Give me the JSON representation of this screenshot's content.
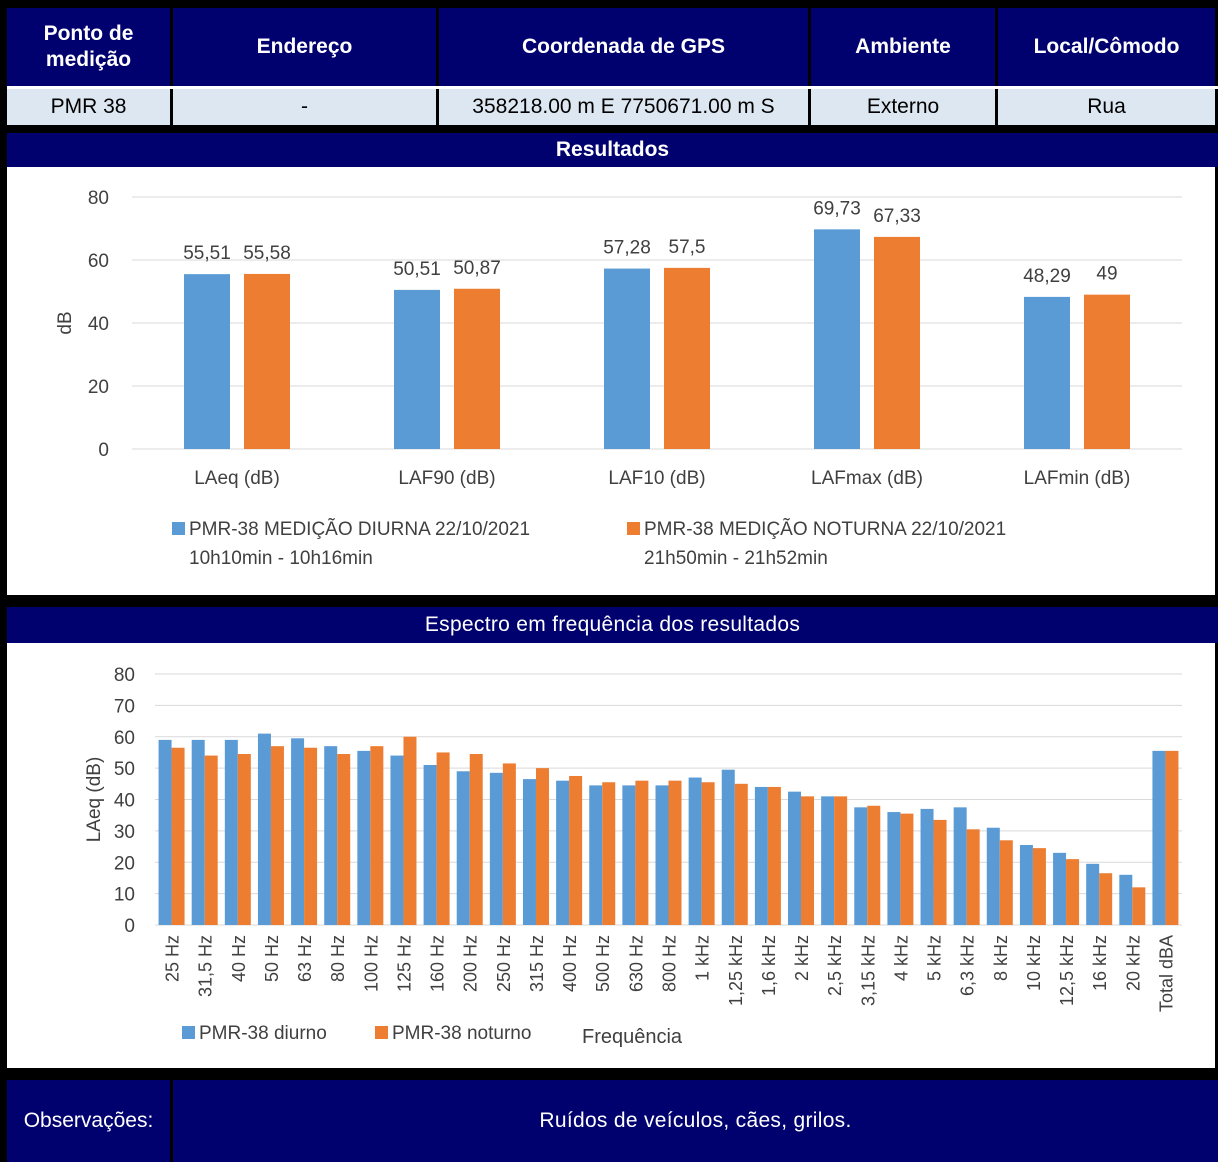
{
  "header": {
    "columns": [
      "Ponto de\nmedição",
      "Endereço",
      "Coordenada de GPS",
      "Ambiente",
      "Local/Cômodo"
    ],
    "values": [
      "PMR 38",
      "-",
      "358218.00 m E 7750671.00 m S",
      "Externo",
      "Rua"
    ]
  },
  "results_title": "Resultados",
  "spectrum_title": "Espectro em frequência dos resultados",
  "observations": {
    "label": "Observações:",
    "text": "Ruídos de veículos, cães, grilos."
  },
  "colors": {
    "diurno": "#5b9bd5",
    "noturno": "#ed7d31",
    "band": "#00006e",
    "grid": "#d9d9d9"
  },
  "chart_data": [
    {
      "type": "bar",
      "ylabel": "dB",
      "xlabel": "",
      "ylim": [
        0,
        80
      ],
      "yticks": [
        0,
        20,
        40,
        60,
        80
      ],
      "grid": true,
      "legend_position": "bottom",
      "categories": [
        "LAeq (dB)",
        "LAF90 (dB)",
        "LAF10 (dB)",
        "LAFmax (dB)",
        "LAFmin (dB)"
      ],
      "series": [
        {
          "name_line1": "PMR-38 MEDIÇÃO DIURNA 22/10/2021",
          "name_line2": "10h10min - 10h16min",
          "values": [
            55.51,
            50.51,
            57.28,
            69.73,
            48.29
          ],
          "labels": [
            "55,51",
            "50,51",
            "57,28",
            "69,73",
            "48,29"
          ]
        },
        {
          "name_line1": "PMR-38 MEDIÇÃO NOTURNA 22/10/2021",
          "name_line2": "21h50min - 21h52min",
          "values": [
            55.58,
            50.87,
            57.5,
            67.33,
            49
          ],
          "labels": [
            "55,58",
            "50,87",
            "57,5",
            "67,33",
            "49"
          ]
        }
      ]
    },
    {
      "type": "bar",
      "ylabel": "LAeq (dB)",
      "xlabel": "Frequência",
      "ylim": [
        0,
        80
      ],
      "yticks": [
        0,
        10,
        20,
        30,
        40,
        50,
        60,
        70,
        80
      ],
      "grid": true,
      "legend_position": "bottom-left",
      "categories": [
        "25 Hz",
        "31,5 Hz",
        "40 Hz",
        "50 Hz",
        "63 Hz",
        "80 Hz",
        "100 Hz",
        "125 Hz",
        "160 Hz",
        "200 Hz",
        "250 Hz",
        "315 Hz",
        "400 Hz",
        "500 Hz",
        "630 Hz",
        "800 Hz",
        "1 kHz",
        "1,25 kHz",
        "1,6 kHz",
        "2 kHz",
        "2,5 kHz",
        "3,15 kHz",
        "4 kHz",
        "5 kHz",
        "6,3 kHz",
        "8 kHz",
        "10 kHz",
        "12,5 kHz",
        "16 kHz",
        "20 kHz",
        "Total dBA"
      ],
      "series": [
        {
          "name": "PMR-38 diurno",
          "values": [
            59,
            59,
            59,
            61,
            59.5,
            57,
            55.5,
            54,
            51,
            49,
            48.5,
            46.5,
            46,
            44.5,
            44.5,
            44.5,
            47,
            49.5,
            44,
            42.5,
            41,
            37.5,
            36,
            37,
            37.5,
            31,
            25.5,
            23,
            19.5,
            16,
            55.5
          ]
        },
        {
          "name": "PMR-38 noturno",
          "values": [
            56.5,
            54,
            54.5,
            57,
            56.5,
            54.5,
            57,
            60,
            55,
            54.5,
            51.5,
            50,
            47.5,
            45.5,
            46,
            46,
            45.5,
            45,
            44,
            41,
            41,
            38,
            35.5,
            33.5,
            30.5,
            27,
            24.5,
            21,
            16.5,
            12,
            55.5
          ]
        }
      ]
    }
  ]
}
